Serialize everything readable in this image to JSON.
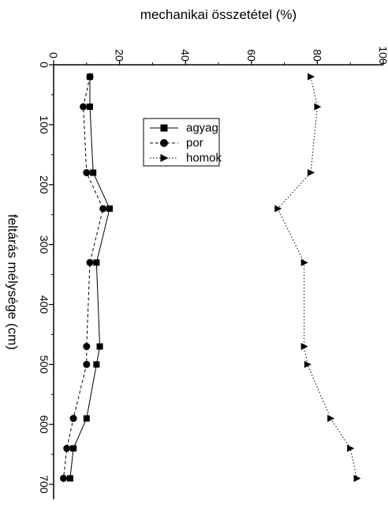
{
  "chart_data": {
    "type": "scatter",
    "orientation": "rotated-90",
    "xlabel": "feltárás mélysége (cm)",
    "ylabel": "mechanikai összetétel (%)",
    "xlim": [
      0,
      725
    ],
    "ylim": [
      0,
      100
    ],
    "x_ticks": [
      "0",
      "100",
      "200",
      "300",
      "400",
      "500",
      "600",
      "700"
    ],
    "y_ticks": [
      "0",
      "20",
      "40",
      "60",
      "80",
      "100"
    ],
    "x": [
      20,
      70,
      180,
      240,
      330,
      470,
      500,
      590,
      640,
      690
    ],
    "series": [
      {
        "name": "agyag",
        "marker": "square",
        "line": "solid",
        "values": [
          11,
          11,
          12,
          17,
          13,
          14,
          13,
          10,
          6,
          5
        ]
      },
      {
        "name": "por",
        "marker": "circle",
        "line": "dashed",
        "values": [
          11,
          9,
          10,
          15,
          11,
          10,
          10,
          6,
          4,
          3
        ]
      },
      {
        "name": "homok",
        "marker": "triangle",
        "line": "dotted",
        "values": [
          78,
          80,
          78,
          68,
          76,
          76,
          77,
          84,
          90,
          92
        ]
      }
    ],
    "legend_position": "upper-middle",
    "grid": false
  }
}
